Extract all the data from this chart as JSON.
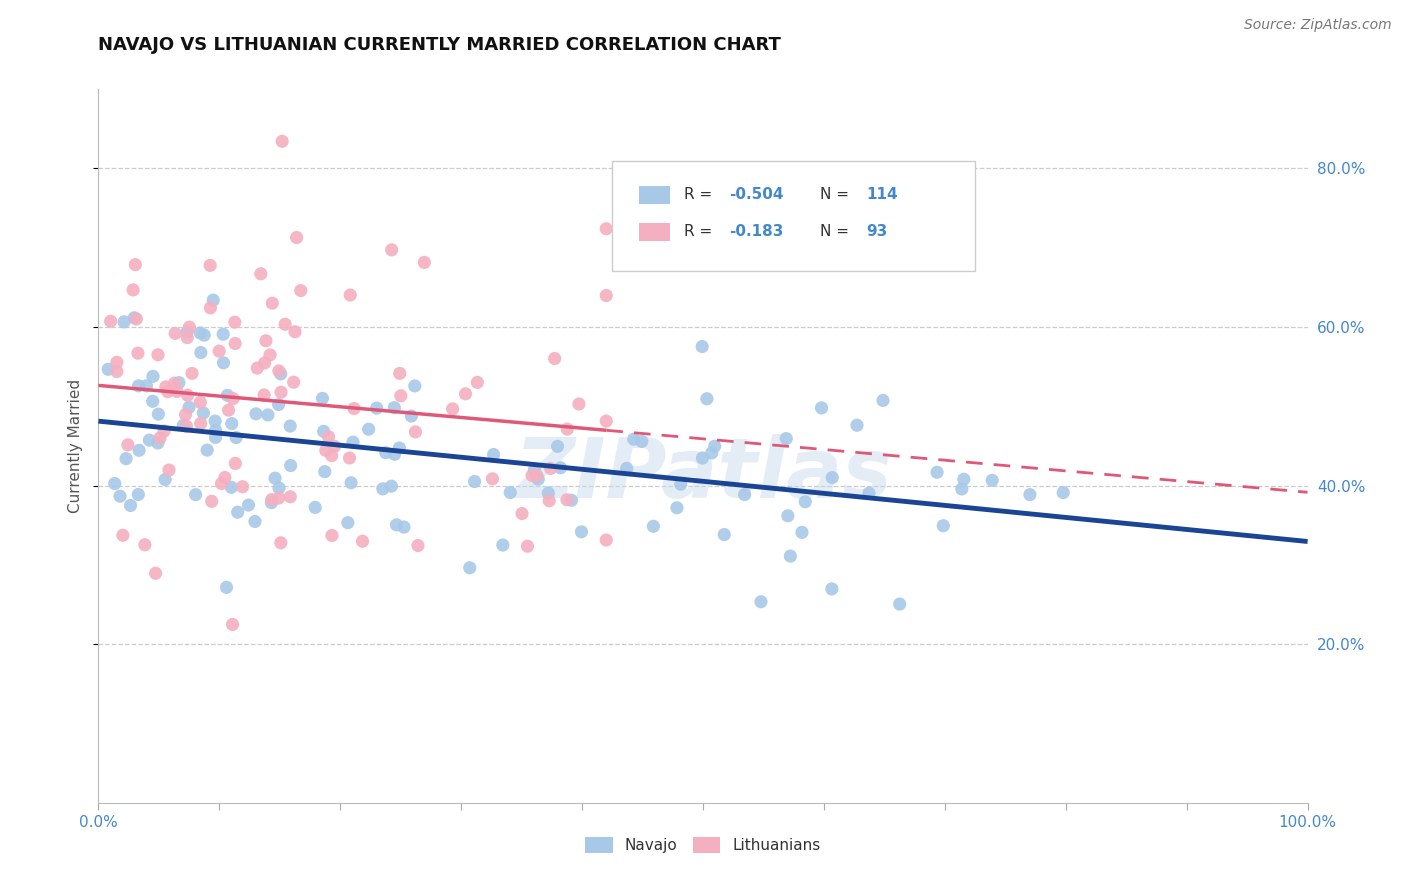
{
  "title": "NAVAJO VS LITHUANIAN CURRENTLY MARRIED CORRELATION CHART",
  "source": "Source: ZipAtlas.com",
  "ylabel": "Currently Married",
  "legend_labels": [
    "Navajo",
    "Lithuanians"
  ],
  "navajo_color": "#a8c8e8",
  "navajo_edge_color": "#a8c8e8",
  "navajo_line_color": "#1a4494",
  "lithuanian_color": "#f4b0c0",
  "lithuanian_edge_color": "#f4b0c0",
  "lithuanian_line_color": "#e05878",
  "watermark": "ZIPatlas",
  "background_color": "#ffffff",
  "xlim": [
    0.0,
    1.0
  ],
  "ylim": [
    0.0,
    0.9
  ],
  "ytick_labels": [
    "20.0%",
    "40.0%",
    "60.0%",
    "80.0%"
  ],
  "ytick_vals": [
    0.2,
    0.4,
    0.6,
    0.8
  ],
  "R_navajo": -0.504,
  "N_navajo": 114,
  "R_lithuanian": -0.183,
  "N_lithuanian": 93,
  "nav_intercept": 0.482,
  "nav_slope": -0.148,
  "lit_intercept": 0.525,
  "lit_slope": -0.095
}
